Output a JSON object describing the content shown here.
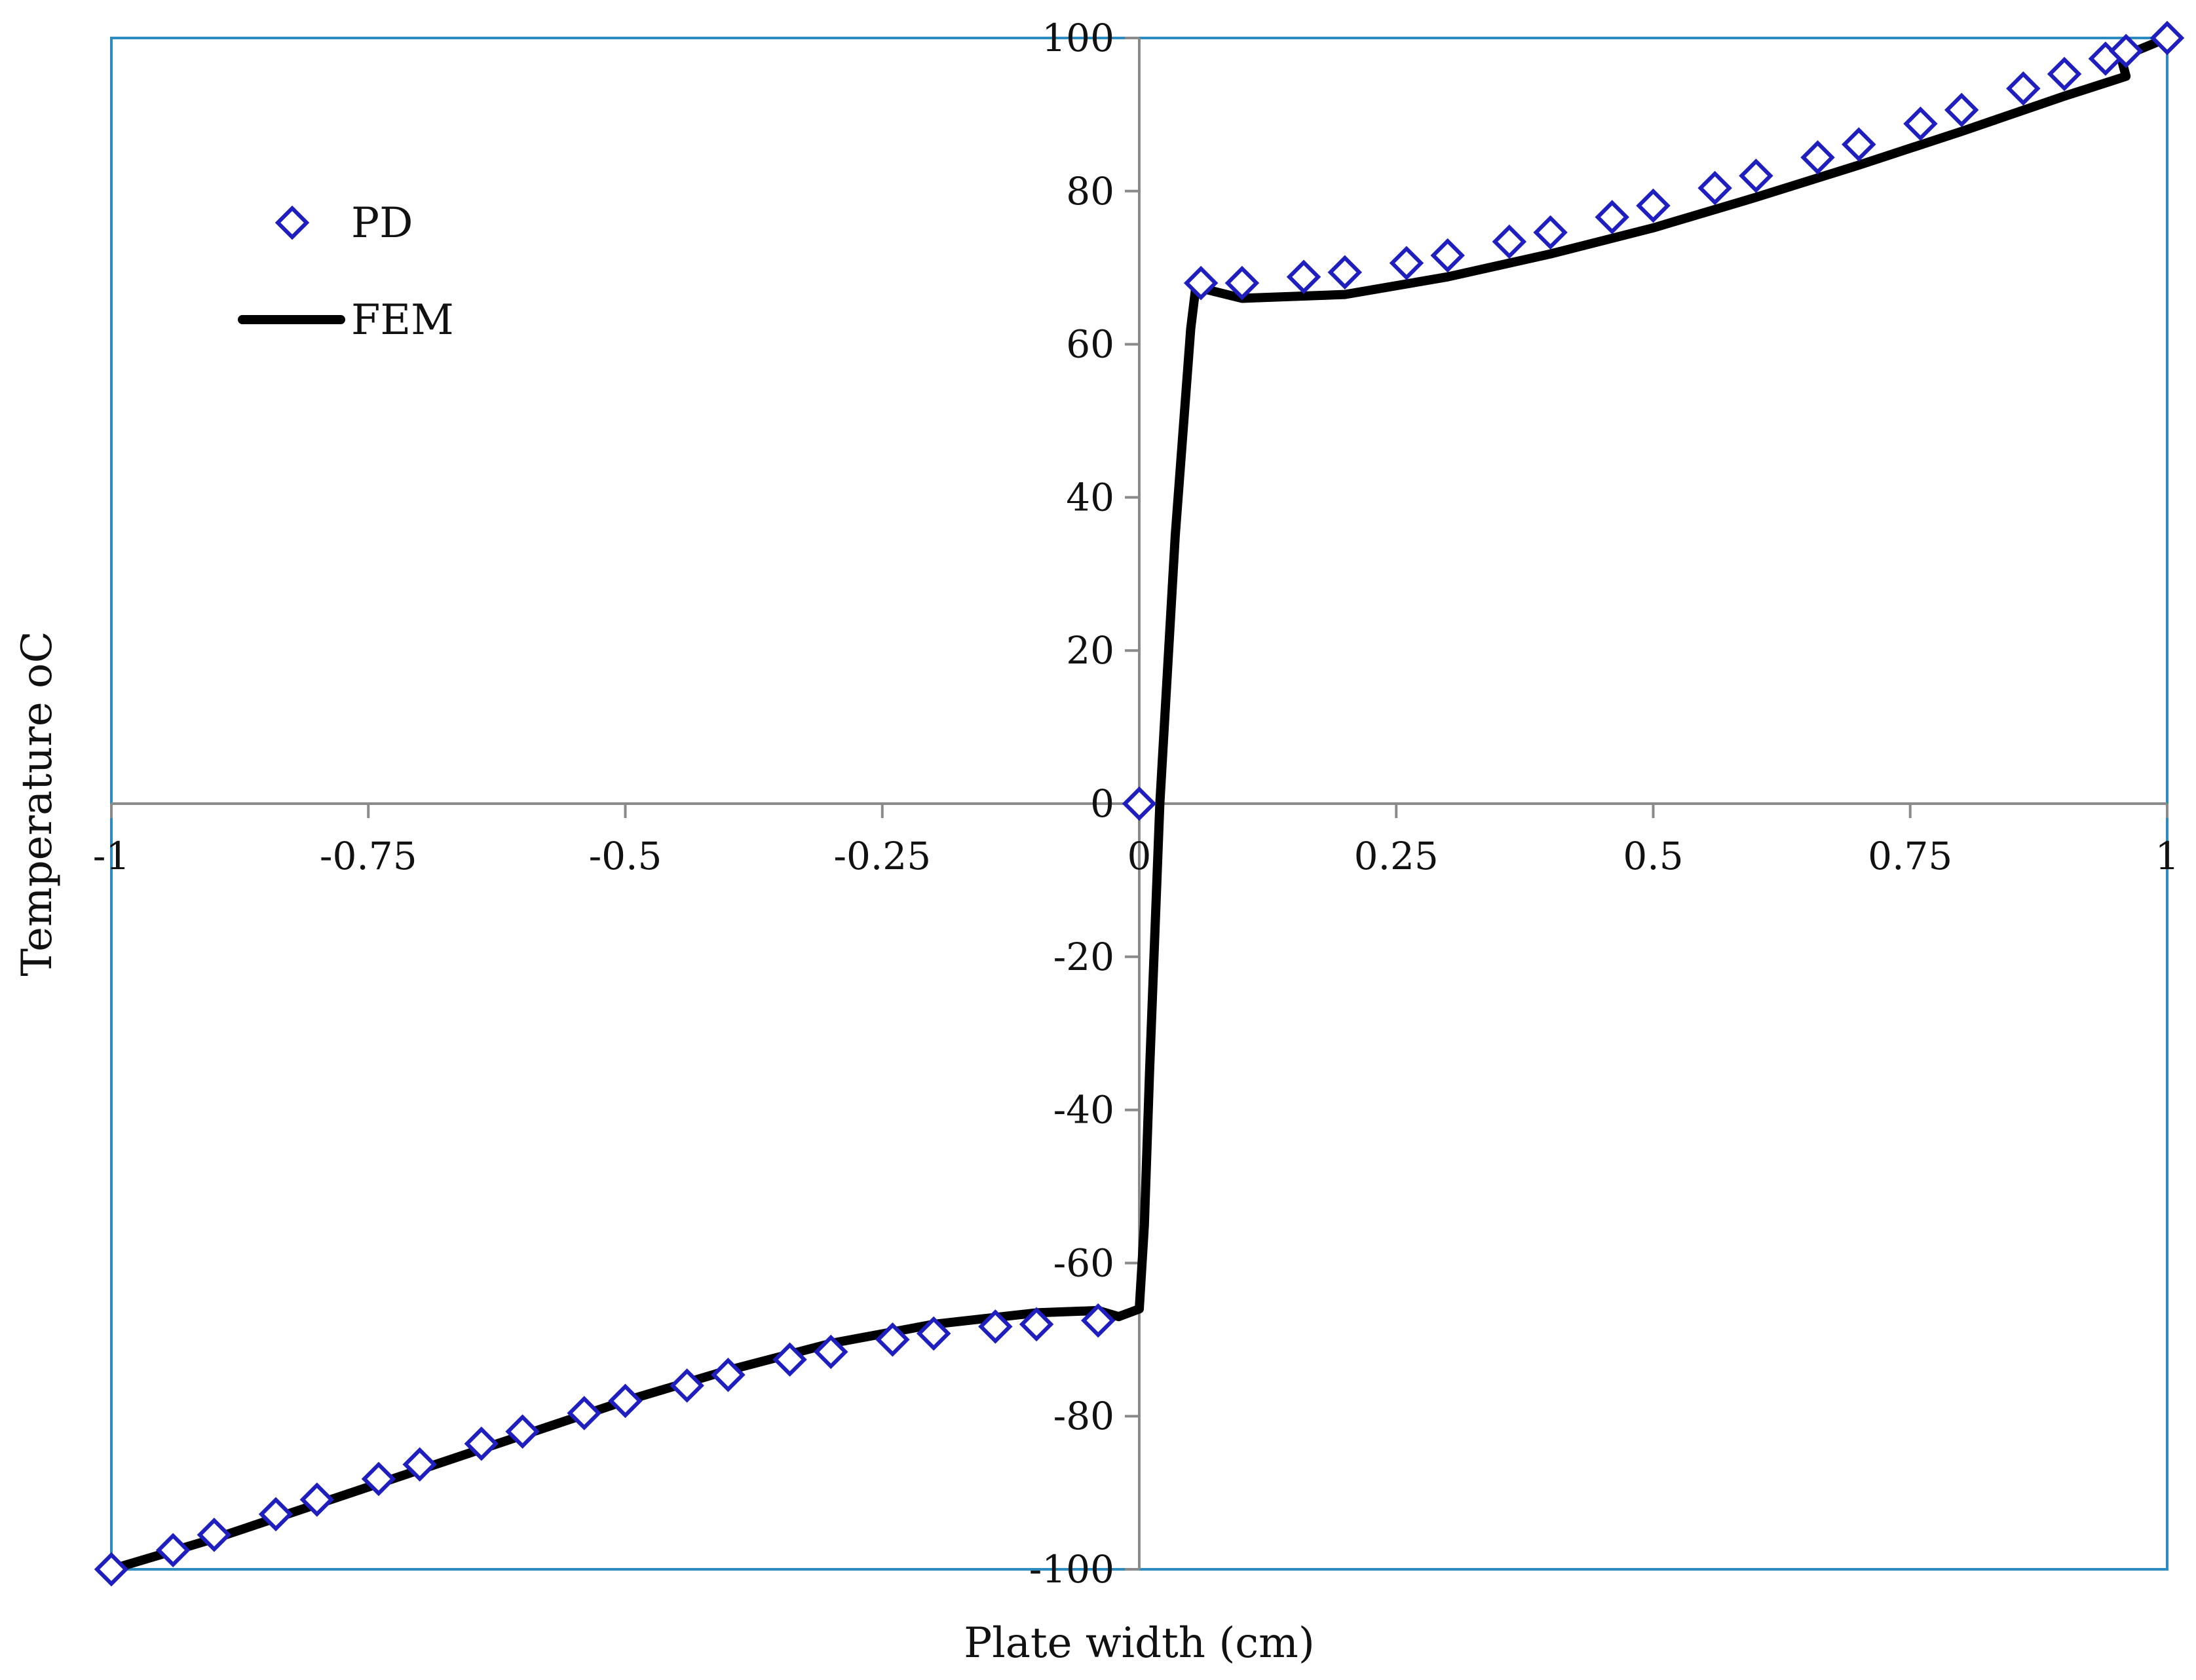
{
  "chart_data": {
    "type": "scatter",
    "title": "",
    "xlabel": "Plate width (cm)",
    "ylabel": "Temperature oC",
    "xlim": [
      -1,
      1
    ],
    "ylim": [
      -100,
      100
    ],
    "x_ticks": [
      -1,
      -0.75,
      -0.5,
      -0.25,
      0,
      0.25,
      0.5,
      0.75,
      1
    ],
    "x_tick_labels": [
      "-1",
      "-0.75",
      "-0.5",
      "-0.25",
      "0",
      "0.25",
      "0.5",
      "0.75",
      "1"
    ],
    "y_ticks": [
      100,
      80,
      60,
      40,
      20,
      0,
      -20,
      -40,
      -60,
      -80,
      -100
    ],
    "y_tick_labels": [
      "100",
      "80",
      "60",
      "40",
      "20",
      "0",
      "-20",
      "-40",
      "-60",
      "-80",
      "-100"
    ],
    "grid": false,
    "legend_position": "top-left",
    "series": [
      {
        "name": "PD",
        "kind": "markers",
        "marker": "diamond",
        "color": "#1f1fbf",
        "points": [
          [
            -1.0,
            -100
          ],
          [
            -0.94,
            -97.5
          ],
          [
            -0.9,
            -95.5
          ],
          [
            -0.84,
            -92.8
          ],
          [
            -0.8,
            -90.9
          ],
          [
            -0.74,
            -88.2
          ],
          [
            -0.7,
            -86.3
          ],
          [
            -0.64,
            -83.6
          ],
          [
            -0.6,
            -82.0
          ],
          [
            -0.54,
            -79.6
          ],
          [
            -0.5,
            -78.0
          ],
          [
            -0.44,
            -76.0
          ],
          [
            -0.4,
            -74.6
          ],
          [
            -0.34,
            -72.6
          ],
          [
            -0.3,
            -71.6
          ],
          [
            -0.24,
            -70.0
          ],
          [
            -0.2,
            -69.2
          ],
          [
            -0.14,
            -68.3
          ],
          [
            -0.1,
            -68.0
          ],
          [
            -0.04,
            -67.5
          ],
          [
            0.0,
            0.0
          ],
          [
            0.06,
            68.0
          ],
          [
            0.1,
            68.0
          ],
          [
            0.16,
            68.8
          ],
          [
            0.2,
            69.4
          ],
          [
            0.26,
            70.6
          ],
          [
            0.3,
            71.6
          ],
          [
            0.36,
            73.4
          ],
          [
            0.4,
            74.6
          ],
          [
            0.46,
            76.6
          ],
          [
            0.5,
            78.1
          ],
          [
            0.56,
            80.4
          ],
          [
            0.6,
            82.0
          ],
          [
            0.66,
            84.4
          ],
          [
            0.7,
            86.1
          ],
          [
            0.76,
            88.8
          ],
          [
            0.8,
            90.6
          ],
          [
            0.86,
            93.4
          ],
          [
            0.9,
            95.3
          ],
          [
            0.94,
            97.3
          ],
          [
            0.96,
            98.3
          ],
          [
            1.0,
            100.0
          ]
        ]
      },
      {
        "name": "FEM",
        "kind": "line",
        "color": "#000000",
        "points": [
          [
            -1.0,
            -100
          ],
          [
            -0.9,
            -96
          ],
          [
            -0.8,
            -91.5
          ],
          [
            -0.7,
            -87
          ],
          [
            -0.6,
            -82.5
          ],
          [
            -0.5,
            -78
          ],
          [
            -0.4,
            -74
          ],
          [
            -0.3,
            -70.5
          ],
          [
            -0.2,
            -68
          ],
          [
            -0.1,
            -66.5
          ],
          [
            -0.04,
            -66.2
          ],
          [
            -0.02,
            -67
          ],
          [
            0.0,
            -66
          ],
          [
            0.005,
            -55
          ],
          [
            0.01,
            -35
          ],
          [
            0.02,
            0
          ],
          [
            0.035,
            35
          ],
          [
            0.05,
            62
          ],
          [
            0.055,
            67.5
          ],
          [
            0.07,
            67
          ],
          [
            0.1,
            66
          ],
          [
            0.2,
            66.5
          ],
          [
            0.3,
            68.8
          ],
          [
            0.4,
            71.8
          ],
          [
            0.5,
            75.2
          ],
          [
            0.6,
            79.2
          ],
          [
            0.7,
            83.4
          ],
          [
            0.8,
            87.8
          ],
          [
            0.9,
            92.4
          ],
          [
            0.96,
            95
          ],
          [
            0.955,
            97.5
          ],
          [
            1.0,
            100
          ]
        ]
      }
    ]
  }
}
